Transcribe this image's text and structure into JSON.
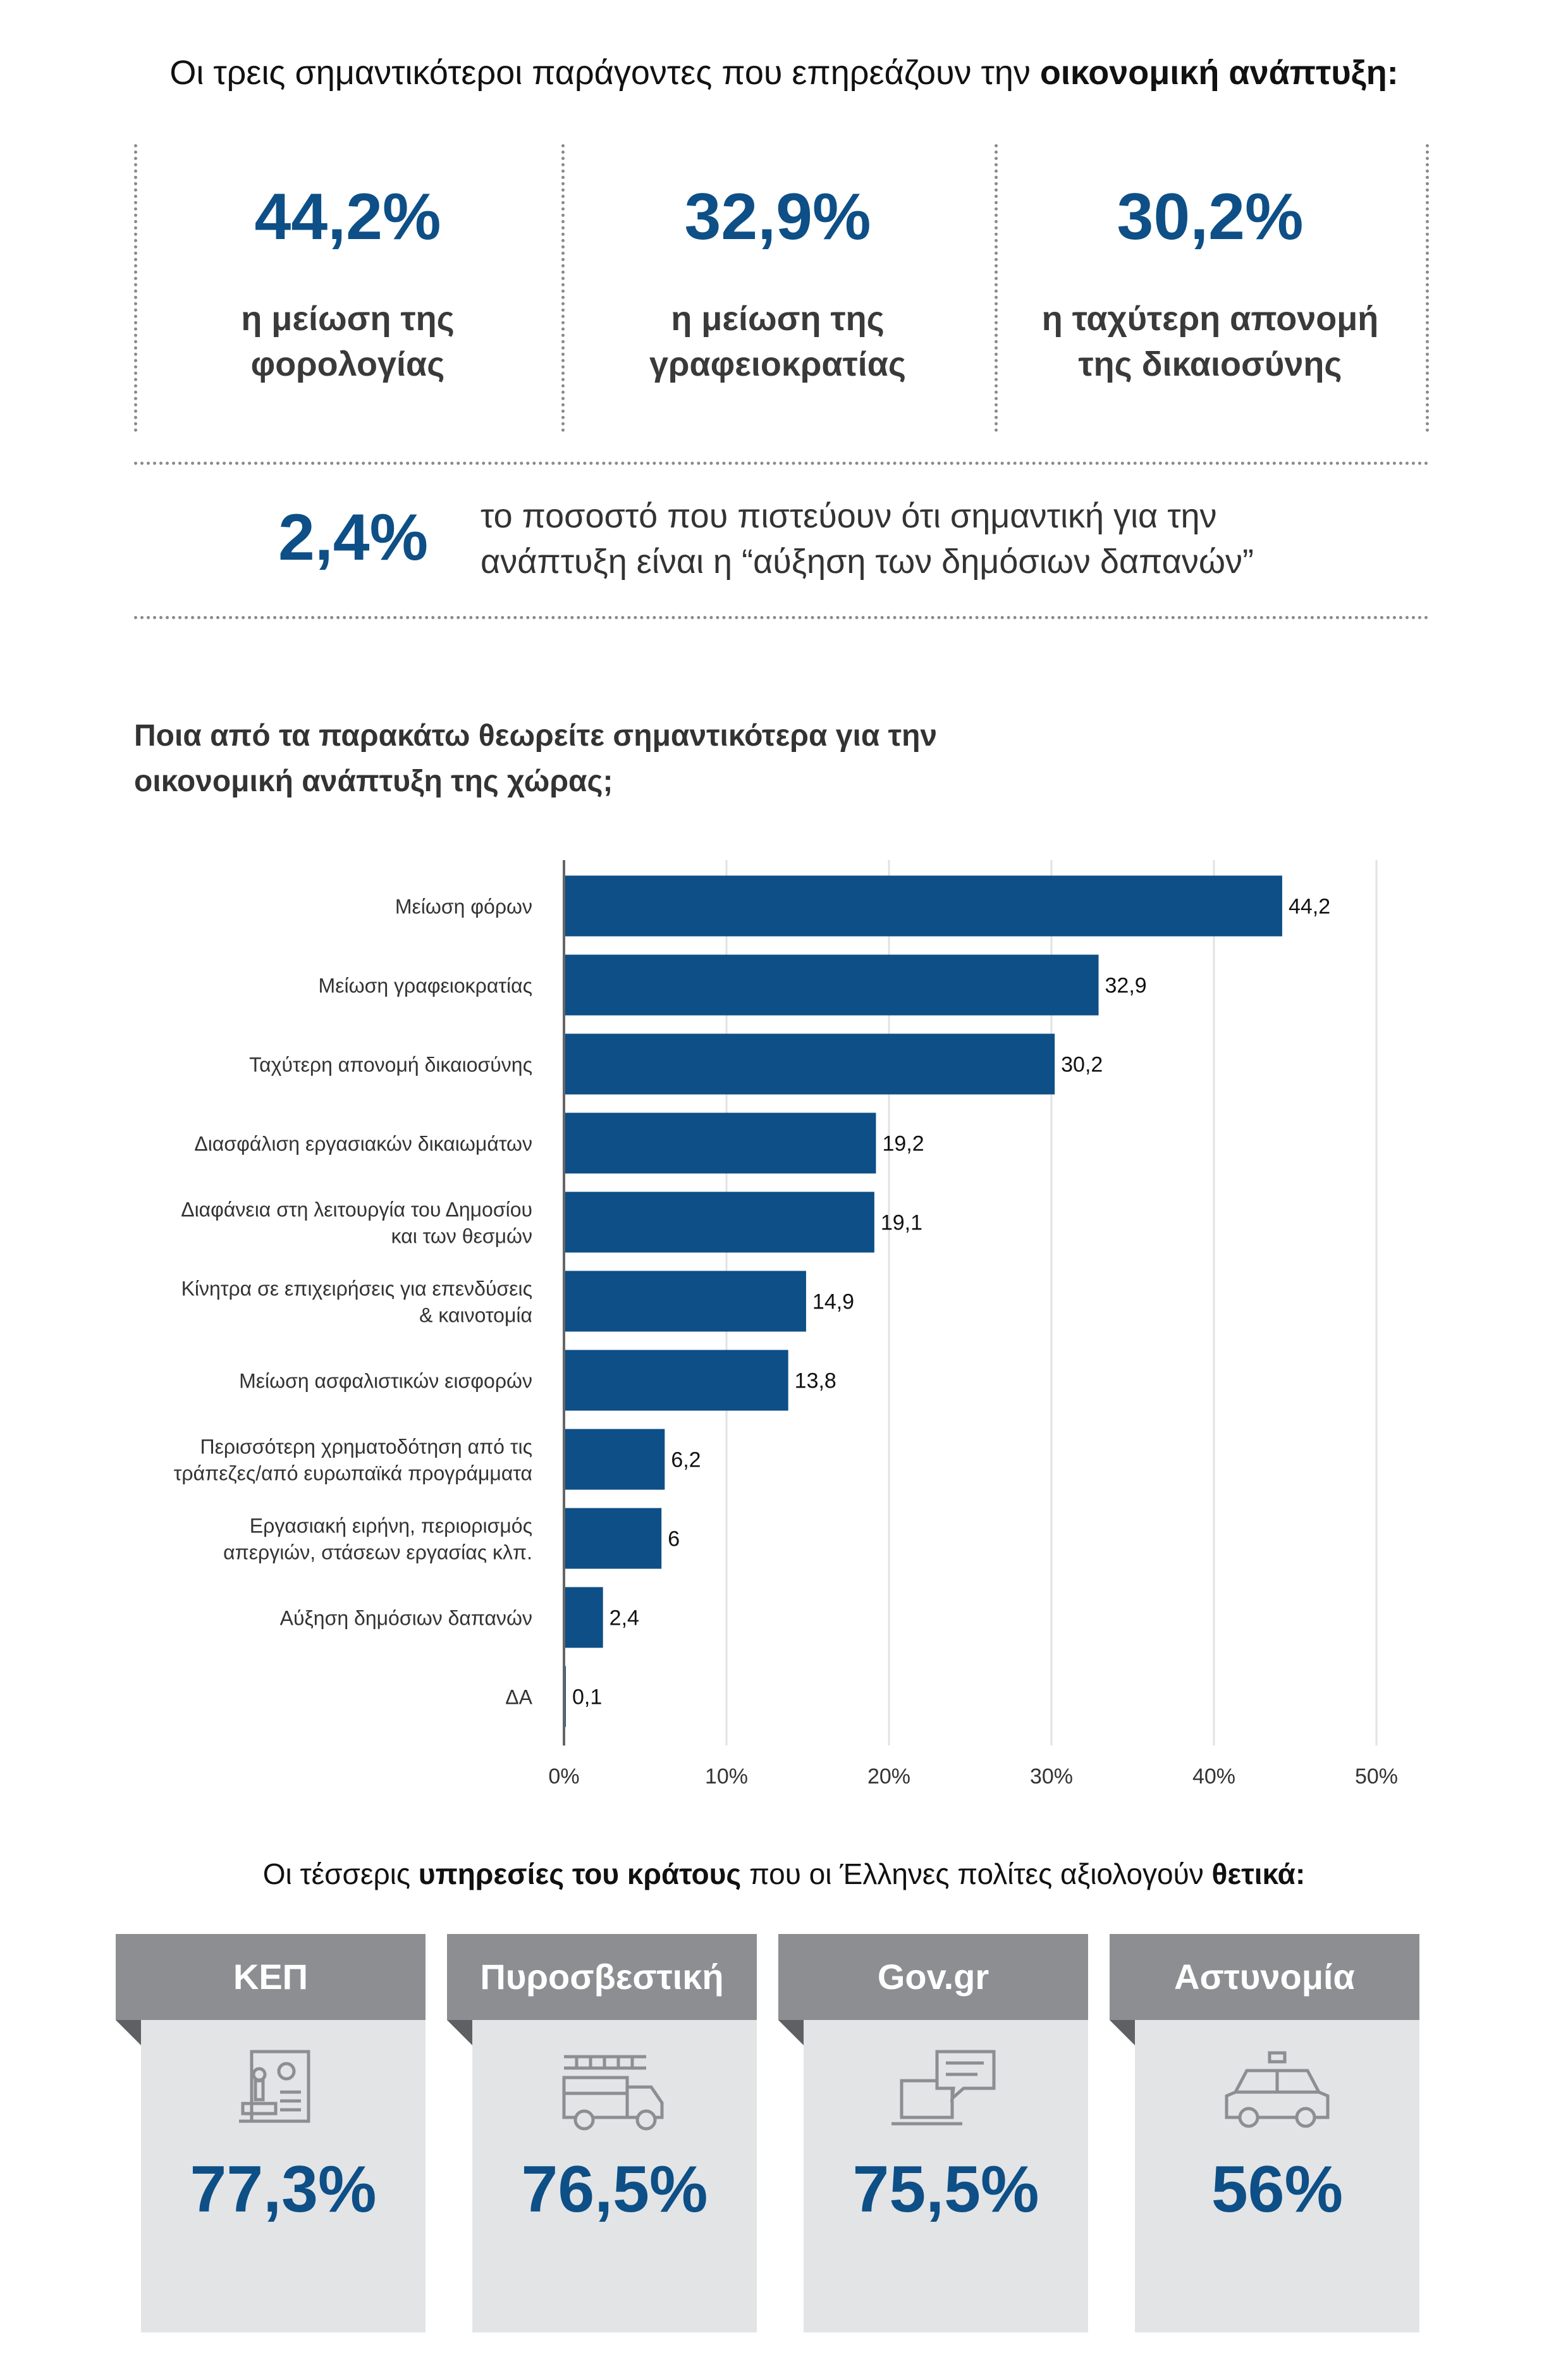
{
  "headline": {
    "prefix": "Οι τρεις σημαντικότεροι παράγοντες που επηρεάζουν την ",
    "bold": "οικονομική ανάπτυξη:"
  },
  "top_stats": [
    {
      "value": "44,2%",
      "line1": "η μείωση της",
      "line2": "φορολογίας"
    },
    {
      "value": "32,9%",
      "line1": "η μείωση της",
      "line2": "γραφειοκρατίας"
    },
    {
      "value": "30,2%",
      "line1": "η ταχύτερη απονομή",
      "line2": "της δικαιοσύνης"
    }
  ],
  "small_stat": {
    "value": "2,4%",
    "line1": "το ποσοστό που πιστεύουν ότι σημαντική για την",
    "line2": "ανάπτυξη είναι η “αύξηση των δημόσιων δαπανών”"
  },
  "question": {
    "line1": "Ποια από τα παρακάτω θεωρείτε σημαντικότερα για την",
    "line2": "οικονομική ανάπτυξη της χώρας;"
  },
  "chart_data": {
    "type": "bar",
    "orientation": "horizontal",
    "categories": [
      [
        "Μείωση φόρων"
      ],
      [
        "Μείωση γραφειοκρατίας"
      ],
      [
        "Ταχύτερη απονομή δικαιοσύνης"
      ],
      [
        "Διασφάλιση εργασιακών δικαιωμάτων"
      ],
      [
        "Διαφάνεια στη λειτουργία του Δημοσίου",
        "και των θεσμών"
      ],
      [
        "Κίνητρα σε επιχειρήσεις για επενδύσεις",
        "& καινοτομία"
      ],
      [
        "Μείωση ασφαλιστικών εισφορών"
      ],
      [
        "Περισσότερη χρηματοδότηση από τις",
        "τράπεζες/από ευρωπαϊκά προγράμματα"
      ],
      [
        "Εργασιακή ειρήνη, περιορισμός",
        "απεργιών, στάσεων εργασίας κλπ."
      ],
      [
        "Αύξηση δημόσιων δαπανών"
      ],
      [
        "ΔΑ"
      ]
    ],
    "values": [
      44.2,
      32.9,
      30.2,
      19.2,
      19.1,
      14.9,
      13.8,
      6.2,
      6,
      2.4,
      0.1
    ],
    "value_labels": [
      "44,2",
      "32,9",
      "30,2",
      "19,2",
      "19,1",
      "14,9",
      "13,8",
      "6,2",
      "6",
      "2,4",
      "0,1"
    ],
    "xlim": [
      0,
      50
    ],
    "xticks": [
      "0%",
      "10%",
      "20%",
      "30%",
      "40%",
      "50%"
    ],
    "grid": true,
    "bar_color": "#0d4f86"
  },
  "services_headline": {
    "part1": "Οι τέσσερις ",
    "bold1": "υπηρεσίες του κράτους",
    "part2": " που οι Έλληνες πολίτες αξιολογούν ",
    "bold2": "θετικά:"
  },
  "services": [
    {
      "name": "ΚΕΠ",
      "value": "77,3%",
      "icon": "stamp-document-icon"
    },
    {
      "name": "Πυροσβεστική",
      "value": "76,5%",
      "icon": "fire-truck-icon"
    },
    {
      "name": "Gov.gr",
      "value": "75,5%",
      "icon": "laptop-chat-icon"
    },
    {
      "name": "Αστυνομία",
      "value": "56%",
      "icon": "police-car-icon"
    }
  ]
}
